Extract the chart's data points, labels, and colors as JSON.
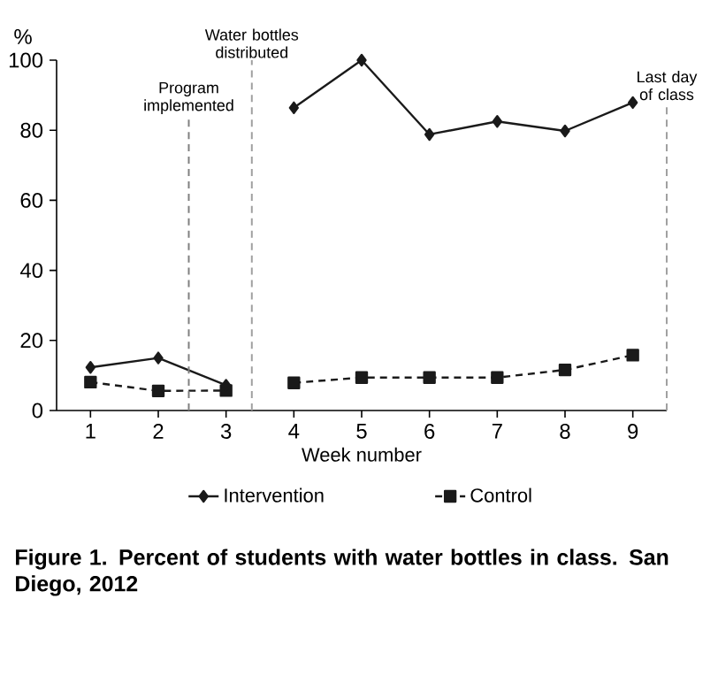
{
  "chart_data": {
    "type": "line",
    "ylabel": "%",
    "xlabel": "Week number",
    "x": [
      1,
      2,
      3,
      3.5,
      4,
      5,
      6,
      7,
      8,
      9
    ],
    "series": [
      {
        "name": "Intervention",
        "color": "#1a1a1a",
        "marker": "diamond",
        "line_style": "solid",
        "values": [
          12.3,
          15,
          7.2,
          null,
          86.4,
          100,
          78.8,
          82.5,
          79.8,
          87.9
        ]
      },
      {
        "name": "Control",
        "color": "#1a1a1a",
        "marker": "square",
        "line_style": "dashed",
        "values": [
          8.1,
          5.6,
          5.7,
          null,
          7.9,
          9.4,
          9.4,
          9.4,
          11.6,
          15.8
        ]
      }
    ],
    "xlim": [
      0.5,
      9.5
    ],
    "xticks": [
      1,
      2,
      3,
      4,
      5,
      6,
      7,
      8,
      9
    ],
    "ylim": [
      0,
      100
    ],
    "yticks": [
      0,
      20,
      40,
      60,
      80,
      100
    ],
    "ref_lines": [
      {
        "axis": "x",
        "value": 2.45,
        "label": "Program implemented",
        "color": "#808080",
        "line_style": "dashed"
      },
      {
        "axis": "x",
        "value": 3.38,
        "label": "Water bottles distributed",
        "color": "#a0a0a0",
        "line_style": "dashed"
      },
      {
        "axis": "x",
        "value": 9.5,
        "label": "Last day of class",
        "color": "#a0a0a0",
        "line_style": "dashed"
      }
    ],
    "legend": "bottom",
    "grid": false,
    "annotations": [
      "**Figure 1. Percent of students with water bottles in class. San Diego, 2012**"
    ]
  }
}
